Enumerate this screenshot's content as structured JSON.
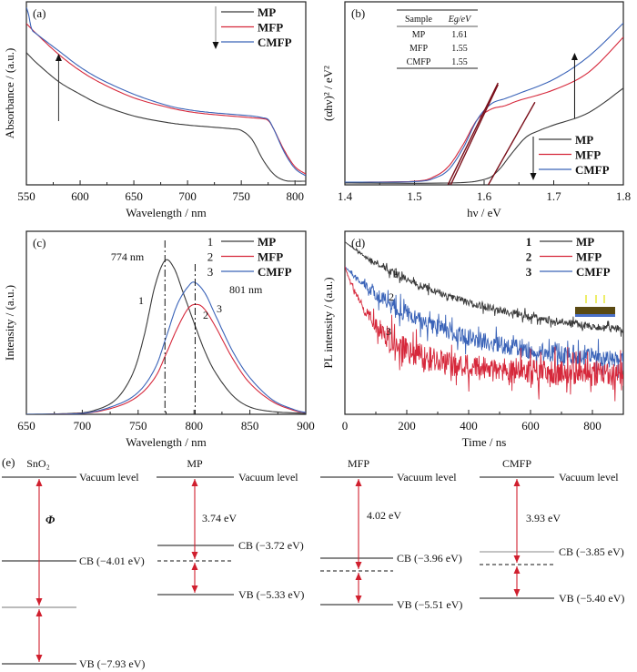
{
  "figure": {
    "colors": {
      "MP": "#3a3a3a",
      "MFP": "#d6283b",
      "CMFP": "#3a63b8",
      "arrow_red": "#d01f2e",
      "tangent": "#7a0f1a"
    }
  },
  "chart_data": [
    {
      "id": "a",
      "panel_label": "(a)",
      "type": "line",
      "xlabel": "Wavelength / nm",
      "ylabel": "Absorbance / (a.u.)",
      "xlim": [
        550,
        810
      ],
      "ylim": [
        0,
        1
      ],
      "xticks": [
        550,
        600,
        650,
        700,
        750,
        800
      ],
      "xtick_labels": [
        "550",
        "600",
        "650",
        "700",
        "750",
        "800"
      ],
      "legend": {
        "placement": "top-right",
        "entries": [
          "MP",
          "MFP",
          "CMFP"
        ]
      },
      "annotations": [
        "arrow up at ~580 nm (increasing MP→MFP→CMFP)",
        "arrow down in legend"
      ],
      "series": [
        {
          "name": "MP",
          "x": [
            550,
            560,
            580,
            600,
            620,
            650,
            680,
            700,
            720,
            740,
            750,
            760,
            770,
            780,
            790,
            800,
            810
          ],
          "y": [
            0.72,
            0.66,
            0.56,
            0.49,
            0.43,
            0.37,
            0.335,
            0.32,
            0.31,
            0.3,
            0.29,
            0.24,
            0.13,
            0.05,
            0.015,
            0.01,
            0.01
          ]
        },
        {
          "name": "MFP",
          "x": [
            550,
            560,
            580,
            600,
            620,
            650,
            680,
            700,
            720,
            740,
            760,
            770,
            775,
            780,
            790,
            800,
            810
          ],
          "y": [
            0.88,
            0.82,
            0.71,
            0.62,
            0.55,
            0.47,
            0.42,
            0.395,
            0.38,
            0.37,
            0.36,
            0.355,
            0.345,
            0.3,
            0.18,
            0.09,
            0.05
          ]
        },
        {
          "name": "CMFP",
          "x": [
            550,
            552,
            555,
            560,
            580,
            600,
            620,
            650,
            680,
            700,
            720,
            740,
            760,
            770,
            775,
            780,
            790,
            800,
            810
          ],
          "y": [
            0.97,
            0.93,
            0.85,
            0.82,
            0.73,
            0.64,
            0.57,
            0.49,
            0.43,
            0.405,
            0.39,
            0.38,
            0.37,
            0.36,
            0.35,
            0.3,
            0.17,
            0.08,
            0.04
          ]
        }
      ]
    },
    {
      "id": "b",
      "panel_label": "(b)",
      "type": "line",
      "xlabel": "hν / eV",
      "ylabel": "(αhν)² / eV²",
      "xlim": [
        1.4,
        1.8
      ],
      "ylim": [
        0,
        1
      ],
      "xticks": [
        1.4,
        1.5,
        1.6,
        1.7,
        1.8
      ],
      "xtick_labels": [
        "1.4",
        "1.5",
        "1.6",
        "1.7",
        "1.8"
      ],
      "legend": {
        "placement": "bottom-right",
        "entries": [
          "MP",
          "MFP",
          "CMFP"
        ]
      },
      "inset_table": {
        "headers": [
          "Sample",
          "Eg/eV"
        ],
        "rows": [
          [
            "MP",
            "1.61"
          ],
          [
            "MFP",
            "1.55"
          ],
          [
            "CMFP",
            "1.55"
          ]
        ]
      },
      "tangent_intercepts_eV": {
        "MP": 1.61,
        "MFP": 1.55,
        "CMFP": 1.55
      },
      "series": [
        {
          "name": "MP",
          "x": [
            1.4,
            1.55,
            1.6,
            1.62,
            1.64,
            1.66,
            1.68,
            1.7,
            1.75,
            1.8
          ],
          "y": [
            0.0,
            0.0,
            0.02,
            0.07,
            0.17,
            0.26,
            0.3,
            0.33,
            0.4,
            0.54
          ]
        },
        {
          "name": "MFP",
          "x": [
            1.4,
            1.5,
            1.53,
            1.55,
            1.57,
            1.59,
            1.61,
            1.63,
            1.65,
            1.7,
            1.75,
            1.8
          ],
          "y": [
            0.005,
            0.01,
            0.04,
            0.1,
            0.22,
            0.36,
            0.42,
            0.44,
            0.47,
            0.53,
            0.63,
            0.83
          ]
        },
        {
          "name": "CMFP",
          "x": [
            1.4,
            1.5,
            1.53,
            1.55,
            1.57,
            1.59,
            1.61,
            1.63,
            1.65,
            1.7,
            1.75,
            1.8
          ],
          "y": [
            0.005,
            0.008,
            0.03,
            0.08,
            0.2,
            0.36,
            0.45,
            0.48,
            0.51,
            0.59,
            0.72,
            0.91
          ]
        }
      ]
    },
    {
      "id": "c",
      "panel_label": "(c)",
      "type": "line",
      "xlabel": "Wavelength / nm",
      "ylabel": "Intensity / (a.u.)",
      "xlim": [
        650,
        900
      ],
      "ylim": [
        0,
        1
      ],
      "xticks": [
        650,
        700,
        750,
        800,
        850,
        900
      ],
      "xtick_labels": [
        "650",
        "700",
        "750",
        "800",
        "850",
        "900"
      ],
      "legend": {
        "placement": "top-right",
        "entries": [
          [
            "1",
            "MP"
          ],
          [
            "2",
            "MFP"
          ],
          [
            "3",
            "CMFP"
          ]
        ]
      },
      "peaks": [
        {
          "label": "774 nm",
          "x": 774
        },
        {
          "label": "801 nm",
          "x": 801
        }
      ],
      "curve_labels": [
        "1",
        "2",
        "3"
      ],
      "series": [
        {
          "name": "MP",
          "x": [
            650,
            690,
            710,
            730,
            745,
            755,
            765,
            774,
            782,
            790,
            800,
            810,
            820,
            835,
            850,
            870,
            900
          ],
          "y": [
            0,
            0.005,
            0.02,
            0.08,
            0.22,
            0.42,
            0.7,
            0.84,
            0.8,
            0.67,
            0.5,
            0.34,
            0.22,
            0.1,
            0.04,
            0.015,
            0.005
          ]
        },
        {
          "name": "MFP",
          "x": [
            650,
            700,
            730,
            750,
            765,
            775,
            785,
            795,
            803,
            810,
            820,
            835,
            850,
            870,
            890,
            900
          ],
          "y": [
            0,
            0.005,
            0.04,
            0.1,
            0.2,
            0.33,
            0.47,
            0.58,
            0.6,
            0.57,
            0.47,
            0.3,
            0.17,
            0.07,
            0.02,
            0.01
          ]
        },
        {
          "name": "CMFP",
          "x": [
            650,
            700,
            730,
            750,
            765,
            775,
            785,
            795,
            801,
            810,
            820,
            835,
            850,
            870,
            890,
            900
          ],
          "y": [
            0,
            0.005,
            0.05,
            0.12,
            0.25,
            0.42,
            0.6,
            0.7,
            0.72,
            0.66,
            0.53,
            0.34,
            0.2,
            0.08,
            0.025,
            0.01
          ]
        }
      ]
    },
    {
      "id": "d",
      "panel_label": "(d)",
      "type": "line",
      "xlabel": "Time / ns",
      "ylabel": "PL intensity / (a.u.)",
      "xlim": [
        0,
        900
      ],
      "ylim": [
        0,
        1
      ],
      "xticks": [
        0,
        200,
        400,
        600,
        800
      ],
      "xtick_labels": [
        "0",
        "200",
        "400",
        "600",
        "800"
      ],
      "legend": {
        "placement": "top-right",
        "entries": [
          [
            "1",
            "MP"
          ],
          [
            "2",
            "MFP"
          ],
          [
            "3",
            "CMFP"
          ]
        ]
      },
      "curve_labels": [
        "1",
        "2",
        "3"
      ],
      "inset": "device schematic with light illumination",
      "series": [
        {
          "name": "MP",
          "model": "biexponential",
          "y0": 0.94,
          "floor": 0.32,
          "tau_ns": 330,
          "noise": 0.02
        },
        {
          "name": "CMFP",
          "model": "biexponential",
          "y0": 0.8,
          "floor": 0.2,
          "tau_ns": 230,
          "noise": 0.05
        },
        {
          "name": "MFP",
          "model": "biexponential",
          "y0": 0.8,
          "floor": 0.18,
          "tau_ns": 85,
          "noise": 0.07
        }
      ]
    }
  ],
  "energy_diagram": {
    "panel_label": "(e)",
    "vacuum_label": "Vacuum level",
    "columns": [
      {
        "name": "SnO₂",
        "cb_label": "CB (−4.01 eV)",
        "vb_label": "VB (−7.93 eV)",
        "gap_label": "Φ",
        "cb": -4.01,
        "vb": -7.93,
        "fermi": -6.3
      },
      {
        "name": "MP",
        "cb_label": "CB (−3.72 eV)",
        "vb_label": "VB (−5.33 eV)",
        "gap_label": "3.74 eV",
        "cb": -3.72,
        "vb": -5.33,
        "fermi": -3.74
      },
      {
        "name": "MFP",
        "cb_label": "CB (−3.96 eV)",
        "vb_label": "VB (−5.51 eV)",
        "gap_label": "4.02 eV",
        "cb": -3.96,
        "vb": -5.51,
        "fermi": -4.02
      },
      {
        "name": "CMFP",
        "cb_label": "CB (−3.85 eV)",
        "vb_label": "VB (−5.40 eV)",
        "gap_label": "3.93 eV",
        "cb": -3.85,
        "vb": -5.4,
        "fermi": -3.93
      }
    ]
  }
}
